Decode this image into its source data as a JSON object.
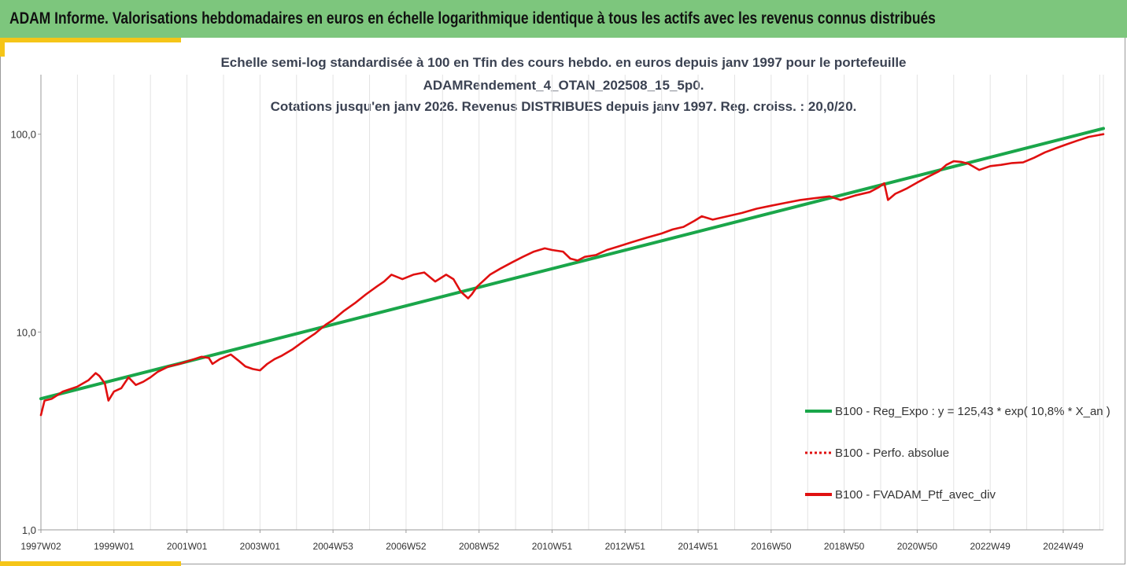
{
  "banner": {
    "title": "ADAM Informe. Valorisations hebdomadaires en euros en échelle logarithmique identique à tous les actifs avec les revenus connus distribués"
  },
  "chart_data": {
    "type": "line",
    "title_lines": [
      "Echelle semi-log standardisée à 100 en Tfin des cours hebdo.  en euros depuis janv 1997 pour le portefeuille",
      "ADAMRendement_4_OTAN_202508_15_5p0.",
      "Cotations  jusqu'en janv 2026. Revenus DISTRIBUES depuis janv 1997. Reg. croiss. : 20,0/20."
    ],
    "y_scale": "log",
    "ylim": [
      1,
      200
    ],
    "y_ticks": [
      1,
      10,
      100
    ],
    "y_tick_labels": [
      "1,0",
      "10,0",
      "100,0"
    ],
    "xlim": [
      1997.0,
      2026.1
    ],
    "x_tick_labels": [
      "1997W02",
      "1999W01",
      "2001W01",
      "2003W01",
      "2004W53",
      "2006W52",
      "2008W52",
      "2010W51",
      "2012W51",
      "2014W51",
      "2016W50",
      "2018W50",
      "2020W50",
      "2022W49",
      "2024W49"
    ],
    "x_tick_values": [
      1997.0,
      1999.0,
      2001.0,
      2003.0,
      2005.0,
      2007.0,
      2009.0,
      2011.0,
      2013.0,
      2015.0,
      2017.0,
      2019.0,
      2021.0,
      2023.0,
      2025.0
    ],
    "grid": "vertical",
    "legend_position": "bottom-right",
    "series": [
      {
        "name": "B100 - Reg_Expo : y = 125,43 * exp( 10,8% *  X_an )",
        "color": "#1aa64a",
        "style": "solid",
        "x": [
          1997.0,
          2026.1
        ],
        "y": [
          4.6,
          107
        ]
      },
      {
        "name": "B100 - Perfo. absolue",
        "color": "#e01010",
        "style": "dotted",
        "x": [],
        "y": []
      },
      {
        "name": "B100 - FVADAM_Ptf_avec_div",
        "color": "#e01010",
        "style": "solid",
        "x": [
          1997.0,
          1997.1,
          1997.3,
          1997.6,
          1998.0,
          1998.3,
          1998.5,
          1998.6,
          1998.75,
          1998.85,
          1999.0,
          1999.2,
          1999.4,
          1999.6,
          1999.8,
          2000.0,
          2000.2,
          2000.5,
          2000.8,
          2001.0,
          2001.2,
          2001.4,
          2001.6,
          2001.7,
          2001.9,
          2002.2,
          2002.4,
          2002.6,
          2002.8,
          2003.0,
          2003.2,
          2003.4,
          2003.6,
          2003.9,
          2004.2,
          2004.5,
          2004.8,
          2005.0,
          2005.3,
          2005.6,
          2005.9,
          2006.2,
          2006.4,
          2006.6,
          2006.9,
          2007.2,
          2007.5,
          2007.8,
          2008.1,
          2008.3,
          2008.5,
          2008.7,
          2008.8,
          2008.95,
          2009.1,
          2009.3,
          2009.6,
          2009.9,
          2010.2,
          2010.5,
          2010.8,
          2011.0,
          2011.3,
          2011.5,
          2011.7,
          2011.9,
          2012.2,
          2012.5,
          2012.8,
          2013.2,
          2013.6,
          2014.0,
          2014.3,
          2014.6,
          2014.9,
          2015.1,
          2015.4,
          2015.8,
          2016.2,
          2016.6,
          2017.0,
          2017.4,
          2017.8,
          2018.2,
          2018.6,
          2018.9,
          2019.3,
          2019.7,
          2019.95,
          2020.1,
          2020.2,
          2020.4,
          2020.7,
          2021.0,
          2021.3,
          2021.6,
          2021.8,
          2022.0,
          2022.2,
          2022.4,
          2022.7,
          2023.0,
          2023.3,
          2023.6,
          2023.9,
          2024.2,
          2024.5,
          2024.8,
          2025.1,
          2025.4,
          2025.7,
          2026.1
        ],
        "y": [
          3.8,
          4.5,
          4.6,
          5.0,
          5.3,
          5.7,
          6.2,
          6.0,
          5.5,
          4.5,
          5.0,
          5.2,
          5.9,
          5.4,
          5.6,
          5.9,
          6.3,
          6.7,
          6.9,
          7.1,
          7.3,
          7.5,
          7.4,
          6.9,
          7.3,
          7.7,
          7.2,
          6.7,
          6.5,
          6.4,
          6.9,
          7.3,
          7.6,
          8.2,
          9.0,
          9.8,
          10.9,
          11.5,
          12.8,
          14.0,
          15.5,
          17.0,
          18.0,
          19.5,
          18.5,
          19.5,
          20.0,
          18.0,
          19.5,
          18.5,
          16.0,
          14.8,
          15.5,
          17.0,
          18.0,
          19.5,
          21.0,
          22.5,
          24.0,
          25.5,
          26.5,
          26.0,
          25.5,
          23.5,
          23.0,
          24.0,
          24.5,
          26.0,
          27.0,
          28.5,
          30.0,
          31.5,
          33.0,
          34.0,
          36.5,
          38.5,
          37.0,
          38.5,
          40.0,
          42.0,
          43.5,
          45.0,
          46.5,
          47.5,
          48.5,
          46.5,
          49.0,
          51.0,
          54.0,
          56.5,
          46.5,
          50.0,
          53.0,
          57.0,
          61.0,
          65.0,
          70.0,
          73.0,
          72.5,
          71.0,
          66.0,
          69.0,
          70.0,
          71.5,
          72.0,
          76.0,
          81.0,
          85.0,
          89.0,
          93.0,
          97.0,
          100.0
        ]
      }
    ]
  }
}
